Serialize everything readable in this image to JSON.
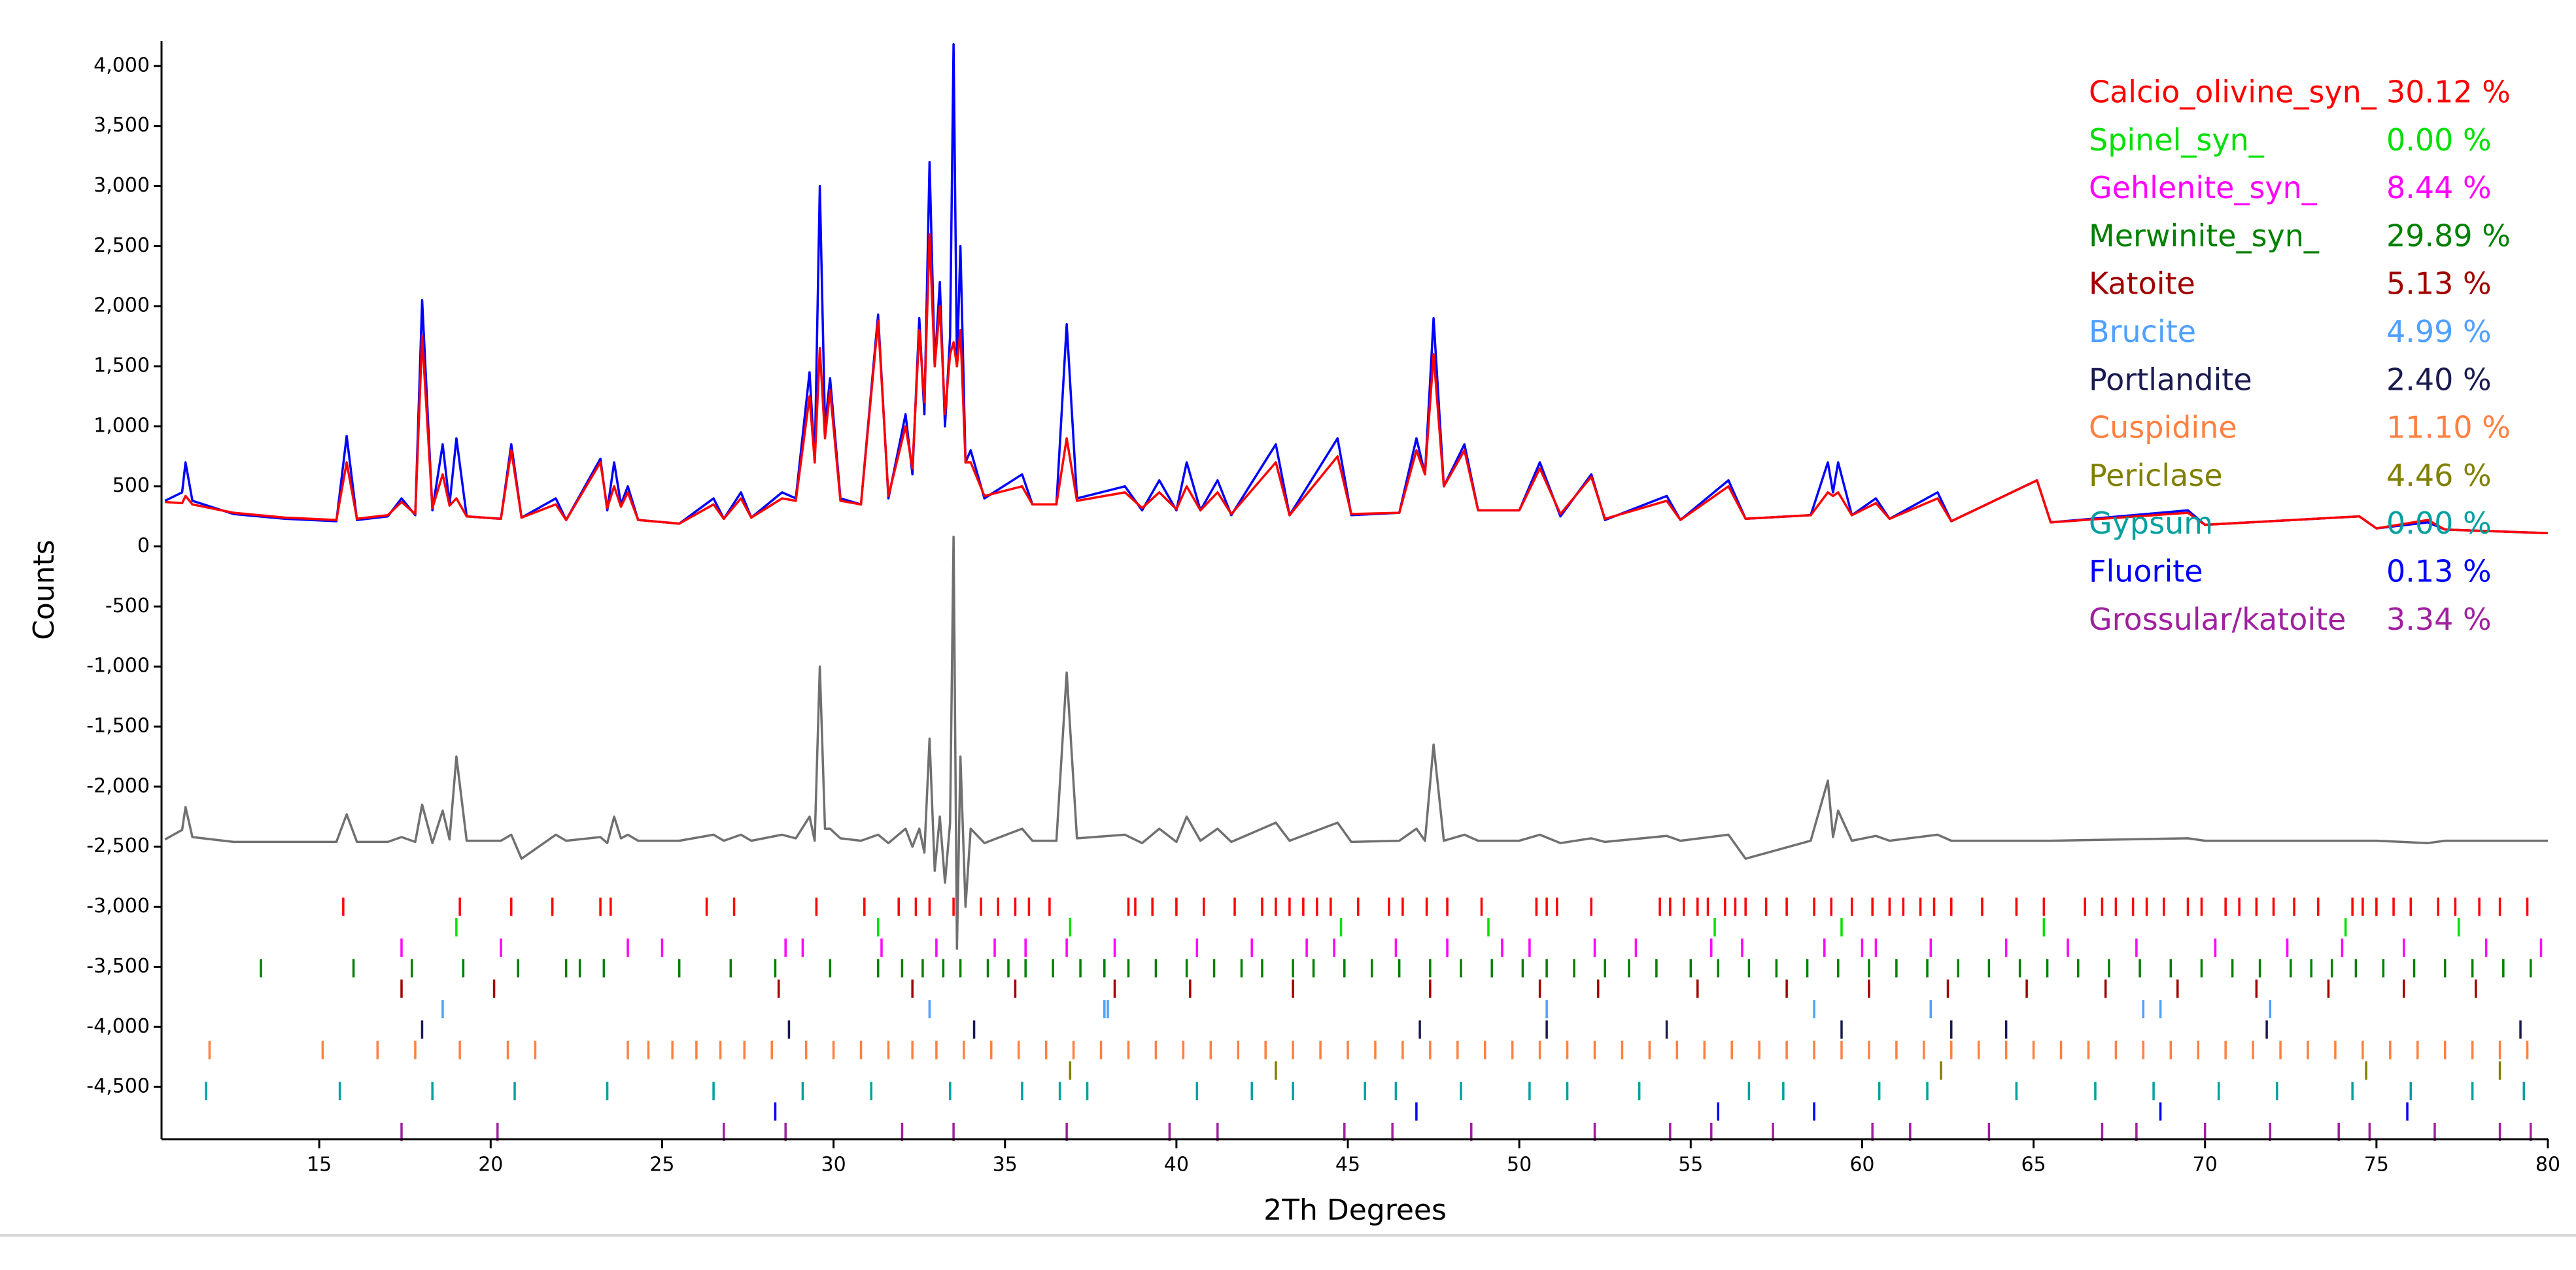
{
  "chart_data": {
    "type": "line",
    "x_label": "2Th Degrees",
    "y_label": "Counts",
    "xlim": [
      10.4,
      80
    ],
    "xticks": [
      15,
      20,
      25,
      30,
      35,
      40,
      45,
      50,
      55,
      60,
      65,
      70,
      75,
      80
    ],
    "ylim": [
      -4935,
      4206
    ],
    "yticks": [
      {
        "value": 4000,
        "label": "4,000"
      },
      {
        "value": 3500,
        "label": "3,500"
      },
      {
        "value": 3000,
        "label": "3,000"
      },
      {
        "value": 2500,
        "label": "2,500"
      },
      {
        "value": 2000,
        "label": "2,000"
      },
      {
        "value": 1500,
        "label": "1,500"
      },
      {
        "value": 1000,
        "label": "1,000"
      },
      500,
      0,
      -500,
      {
        "value": -1000,
        "label": "-1,000"
      },
      {
        "value": -1500,
        "label": "-1,500"
      },
      {
        "value": -2000,
        "label": "-2,000"
      },
      {
        "value": -2500,
        "label": "-2,500"
      },
      {
        "value": -3000,
        "label": "-3,000"
      },
      {
        "value": -3500,
        "label": "-3,500"
      },
      {
        "value": -4000,
        "label": "-4,000"
      },
      {
        "value": -4500,
        "label": "-4,500"
      }
    ],
    "x": [
      10.5,
      11.0,
      11.1,
      11.3,
      12.5,
      14.0,
      15.5,
      15.8,
      16.1,
      17.0,
      17.4,
      17.8,
      18.0,
      18.3,
      18.6,
      18.8,
      19.0,
      19.3,
      20.3,
      20.6,
      20.9,
      21.9,
      22.2,
      23.2,
      23.4,
      23.6,
      23.8,
      24.0,
      24.3,
      25.5,
      26.5,
      26.8,
      27.3,
      27.6,
      28.5,
      28.9,
      29.3,
      29.45,
      29.6,
      29.75,
      29.9,
      30.2,
      30.8,
      31.3,
      31.6,
      32.1,
      32.3,
      32.5,
      32.65,
      32.8,
      32.95,
      33.1,
      33.25,
      33.4,
      33.5,
      33.6,
      33.7,
      33.85,
      34.0,
      34.4,
      35.5,
      35.8,
      36.5,
      36.8,
      37.1,
      38.5,
      39.0,
      39.5,
      40.0,
      40.3,
      40.7,
      41.2,
      41.6,
      42.9,
      43.3,
      44.7,
      45.1,
      46.5,
      47.0,
      47.25,
      47.5,
      47.8,
      48.4,
      48.8,
      50.0,
      50.6,
      51.2,
      52.1,
      52.5,
      54.3,
      54.7,
      56.1,
      56.6,
      58.5,
      59.0,
      59.15,
      59.3,
      59.7,
      60.4,
      60.8,
      62.2,
      62.6,
      65.1,
      65.5,
      69.5,
      70.0,
      74.5,
      75.0,
      76.5,
      77.0,
      80.0
    ],
    "series": [
      {
        "color": "#0000ff",
        "values": [
          380,
          450,
          700,
          380,
          270,
          230,
          210,
          920,
          220,
          250,
          400,
          260,
          2050,
          300,
          850,
          350,
          900,
          250,
          230,
          850,
          240,
          400,
          220,
          730,
          300,
          700,
          350,
          500,
          220,
          190,
          400,
          230,
          450,
          240,
          450,
          400,
          1450,
          700,
          3000,
          1000,
          1400,
          400,
          350,
          1930,
          400,
          1100,
          600,
          1900,
          1100,
          3200,
          1500,
          2200,
          1000,
          1750,
          4180,
          1500,
          2500,
          700,
          800,
          400,
          600,
          350,
          350,
          1850,
          400,
          500,
          300,
          550,
          300,
          700,
          300,
          550,
          260,
          850,
          260,
          900,
          260,
          280,
          900,
          600,
          1900,
          500,
          850,
          300,
          300,
          700,
          250,
          600,
          220,
          420,
          220,
          550,
          230,
          260,
          700,
          450,
          700,
          260,
          400,
          230,
          450,
          210,
          550,
          200,
          300,
          180,
          250,
          150,
          200,
          140,
          110
        ]
      },
      {
        "color": "#ff0000",
        "values": [
          370,
          360,
          420,
          350,
          280,
          240,
          220,
          700,
          230,
          260,
          370,
          270,
          1750,
          320,
          600,
          340,
          400,
          250,
          230,
          800,
          240,
          350,
          220,
          700,
          320,
          500,
          330,
          450,
          220,
          190,
          350,
          230,
          400,
          240,
          400,
          380,
          1250,
          700,
          1650,
          900,
          1300,
          380,
          350,
          1880,
          420,
          1000,
          650,
          1800,
          1200,
          2600,
          1500,
          2000,
          1100,
          1600,
          1700,
          1500,
          1800,
          700,
          700,
          420,
          500,
          350,
          350,
          900,
          380,
          450,
          320,
          450,
          310,
          500,
          300,
          450,
          270,
          700,
          260,
          750,
          270,
          280,
          800,
          600,
          1600,
          500,
          800,
          300,
          300,
          650,
          270,
          580,
          230,
          380,
          220,
          500,
          230,
          260,
          450,
          420,
          450,
          260,
          360,
          230,
          400,
          210,
          550,
          200,
          280,
          180,
          250,
          150,
          220,
          140,
          110
        ]
      },
      {
        "color": "#707070",
        "values": [
          -2440,
          -2360,
          -2170,
          -2420,
          -2460,
          -2460,
          -2460,
          -2230,
          -2460,
          -2460,
          -2420,
          -2460,
          -2150,
          -2470,
          -2200,
          -2440,
          -1750,
          -2450,
          -2450,
          -2400,
          -2600,
          -2400,
          -2450,
          -2420,
          -2470,
          -2250,
          -2430,
          -2400,
          -2450,
          -2450,
          -2400,
          -2450,
          -2400,
          -2450,
          -2400,
          -2430,
          -2250,
          -2450,
          -1000,
          -2350,
          -2350,
          -2430,
          -2450,
          -2400,
          -2470,
          -2350,
          -2500,
          -2350,
          -2550,
          -1600,
          -2700,
          -2250,
          -2800,
          -2300,
          80,
          -3350,
          -1750,
          -3000,
          -2350,
          -2470,
          -2350,
          -2450,
          -2450,
          -1050,
          -2430,
          -2400,
          -2470,
          -2350,
          -2460,
          -2250,
          -2450,
          -2350,
          -2460,
          -2300,
          -2450,
          -2300,
          -2460,
          -2450,
          -2350,
          -2450,
          -1650,
          -2450,
          -2400,
          -2450,
          -2450,
          -2400,
          -2470,
          -2430,
          -2460,
          -2410,
          -2450,
          -2400,
          -2600,
          -2450,
          -1950,
          -2420,
          -2200,
          -2450,
          -2410,
          -2450,
          -2400,
          -2450,
          -2450,
          -2450,
          -2430,
          -2450,
          -2450,
          -2450,
          -2470,
          -2450,
          -2450
        ]
      }
    ],
    "phases": [
      {
        "name": "Calcio_olivine_syn_",
        "color": "#ff0000",
        "wt_percent": 30.12,
        "wt_percent_label": "30.12 %",
        "reflections": [
          15.7,
          19.1,
          20.6,
          21.8,
          23.2,
          23.5,
          26.3,
          27.1,
          29.5,
          30.9,
          31.9,
          32.4,
          32.8,
          33.5,
          34.3,
          34.8,
          35.3,
          35.7,
          36.3,
          38.6,
          38.8,
          39.3,
          40.0,
          40.8,
          41.7,
          42.5,
          42.9,
          43.3,
          43.7,
          44.1,
          44.5,
          45.3,
          46.2,
          46.6,
          47.3,
          47.9,
          48.9,
          50.5,
          50.8,
          51.1,
          52.1,
          54.1,
          54.4,
          54.8,
          55.2,
          55.5,
          56.0,
          56.3,
          56.6,
          57.2,
          57.8,
          58.6,
          59.1,
          59.7,
          60.3,
          60.8,
          61.2,
          61.7,
          62.1,
          62.6,
          63.5,
          64.5,
          65.3,
          66.5,
          67.0,
          67.4,
          67.9,
          68.3,
          68.8,
          69.5,
          69.9,
          70.6,
          71.0,
          71.5,
          72.0,
          72.6,
          73.3,
          74.3,
          74.6,
          75.0,
          75.5,
          76.0,
          76.8,
          77.3,
          78.0,
          78.6,
          79.4
        ]
      },
      {
        "name": "Spinel_syn_",
        "color": "#00e000",
        "wt_percent": 0.0,
        "wt_percent_label": "0.00 %",
        "reflections": [
          19.0,
          31.3,
          36.9,
          44.8,
          49.1,
          55.7,
          59.4,
          65.3,
          74.1,
          77.4
        ]
      },
      {
        "name": "Gehlenite_syn_",
        "color": "#ff00ff",
        "wt_percent": 8.44,
        "wt_percent_label": "8.44 %",
        "reflections": [
          17.4,
          20.3,
          24.0,
          25.0,
          28.6,
          29.1,
          31.4,
          33.0,
          34.7,
          35.6,
          36.8,
          38.2,
          40.6,
          42.2,
          43.8,
          44.6,
          46.4,
          47.9,
          49.5,
          50.3,
          52.2,
          53.4,
          55.6,
          56.5,
          58.9,
          60.0,
          60.4,
          62.0,
          64.2,
          66.0,
          68.0,
          70.3,
          72.4,
          74.0,
          75.8,
          78.2,
          79.8
        ]
      },
      {
        "name": "Merwinite_syn_",
        "color": "#008000",
        "wt_percent": 29.89,
        "wt_percent_label": "29.89 %",
        "reflections": [
          13.3,
          16.0,
          17.7,
          19.2,
          20.8,
          22.2,
          22.6,
          23.3,
          25.5,
          27.0,
          28.3,
          29.9,
          31.3,
          32.0,
          32.6,
          33.2,
          33.7,
          34.5,
          35.1,
          35.6,
          36.4,
          37.2,
          37.9,
          38.6,
          39.4,
          40.3,
          41.1,
          41.9,
          42.5,
          43.4,
          44.0,
          44.9,
          45.7,
          46.5,
          47.4,
          48.3,
          49.2,
          50.1,
          50.8,
          51.6,
          52.5,
          53.2,
          54.0,
          55.0,
          55.8,
          56.7,
          57.5,
          58.4,
          59.3,
          60.2,
          61.0,
          61.9,
          62.8,
          63.7,
          64.6,
          65.4,
          66.3,
          67.2,
          68.1,
          69.0,
          69.9,
          70.8,
          71.6,
          72.5,
          73.1,
          73.7,
          74.4,
          75.2,
          76.1,
          77.0,
          77.8,
          78.7,
          79.5
        ]
      },
      {
        "name": "Katoite",
        "color": "#a00000",
        "wt_percent": 5.13,
        "wt_percent_label": "5.13 %",
        "reflections": [
          17.4,
          20.1,
          28.4,
          32.3,
          35.3,
          38.2,
          40.4,
          43.4,
          47.4,
          50.6,
          52.3,
          55.2,
          57.8,
          60.2,
          62.5,
          64.8,
          67.1,
          69.2,
          71.5,
          73.6,
          75.8,
          77.9
        ]
      },
      {
        "name": "Brucite",
        "color": "#50a0ff",
        "wt_percent": 4.99,
        "wt_percent_label": "4.99 %",
        "reflections": [
          18.6,
          32.8,
          37.9,
          38.0,
          50.8,
          58.6,
          62.0,
          68.2,
          68.7,
          71.9
        ]
      },
      {
        "name": "Portlandite",
        "color": "#1a1a50",
        "wt_percent": 2.4,
        "wt_percent_label": "2.40 %",
        "reflections": [
          18.0,
          28.7,
          34.1,
          47.1,
          50.8,
          54.3,
          59.4,
          62.6,
          64.2,
          71.8,
          79.2
        ]
      },
      {
        "name": "Cuspidine",
        "color": "#ff8040",
        "wt_percent": 11.1,
        "wt_percent_label": "11.10 %",
        "reflections": [
          11.8,
          15.1,
          16.7,
          17.8,
          19.1,
          20.5,
          21.3,
          24.0,
          24.6,
          25.3,
          26.0,
          26.7,
          27.4,
          28.2,
          29.2,
          30.0,
          30.8,
          31.6,
          32.3,
          33.0,
          33.8,
          34.6,
          35.4,
          36.2,
          37.0,
          37.8,
          38.6,
          39.4,
          40.2,
          41.0,
          41.8,
          42.6,
          43.4,
          44.2,
          45.0,
          45.8,
          46.6,
          47.4,
          48.2,
          49.0,
          49.8,
          50.6,
          51.4,
          52.2,
          53.0,
          53.8,
          54.6,
          55.4,
          56.2,
          57.0,
          57.8,
          58.6,
          59.4,
          60.2,
          61.0,
          61.8,
          62.6,
          63.4,
          64.2,
          65.0,
          65.8,
          66.6,
          67.4,
          68.2,
          69.0,
          69.8,
          70.6,
          71.4,
          72.2,
          73.0,
          73.8,
          74.6,
          75.4,
          76.2,
          77.0,
          77.8,
          78.6,
          79.4
        ]
      },
      {
        "name": "Periclase",
        "color": "#808000",
        "wt_percent": 4.46,
        "wt_percent_label": "4.46 %",
        "reflections": [
          36.9,
          42.9,
          62.3,
          74.7,
          78.6
        ]
      },
      {
        "name": "Gypsum",
        "color": "#00a0a0",
        "wt_percent": 0.0,
        "wt_percent_label": "0.00 %",
        "reflections": [
          11.7,
          15.6,
          18.3,
          20.7,
          23.4,
          26.5,
          29.1,
          31.1,
          33.4,
          35.5,
          36.6,
          37.4,
          40.6,
          42.2,
          43.4,
          45.5,
          46.4,
          48.3,
          50.3,
          51.4,
          53.5,
          56.7,
          57.7,
          60.5,
          61.9,
          64.5,
          66.8,
          68.5,
          70.4,
          72.1,
          74.3,
          76.0,
          77.8,
          79.3
        ]
      },
      {
        "name": "Fluorite",
        "color": "#0000ff",
        "wt_percent": 0.13,
        "wt_percent_label": "0.13 %",
        "reflections": [
          28.3,
          47.0,
          55.8,
          58.6,
          68.7,
          75.9
        ]
      },
      {
        "name": "Grossular/katoite",
        "color": "#a020a0",
        "wt_percent": 3.34,
        "wt_percent_label": "3.34 %",
        "reflections": [
          17.4,
          20.2,
          26.8,
          28.6,
          32.0,
          33.5,
          36.8,
          39.8,
          41.2,
          44.9,
          46.3,
          48.6,
          52.2,
          54.4,
          55.6,
          57.4,
          60.3,
          61.4,
          63.7,
          67.0,
          68.0,
          70.0,
          71.9,
          73.9,
          74.8,
          76.7,
          78.6,
          79.5
        ]
      }
    ]
  }
}
